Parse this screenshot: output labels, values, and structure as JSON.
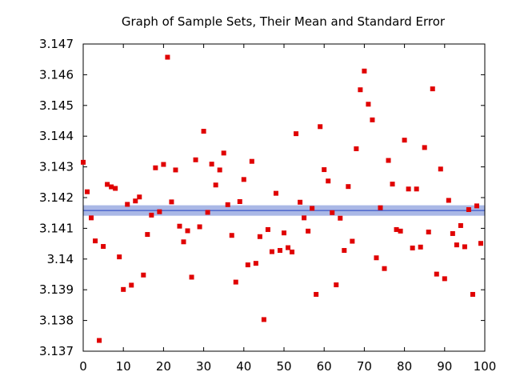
{
  "chart_data": {
    "type": "scatter",
    "title": "Graph of Sample Sets, Their Mean and Standard Error",
    "xlabel": "",
    "ylabel": "",
    "xlim": [
      0,
      100
    ],
    "ylim": [
      3.137,
      3.147
    ],
    "x_ticks": [
      "0",
      "10",
      "20",
      "30",
      "40",
      "50",
      "60",
      "70",
      "80",
      "90",
      "100"
    ],
    "y_ticks": [
      "3.137",
      "3.138",
      "3.139",
      "3.14",
      "3.141",
      "3.142",
      "3.143",
      "3.144",
      "3.145",
      "3.146",
      "3.147"
    ],
    "grid": false,
    "legend": "none",
    "marker_color": "#e00000",
    "mean_line_color": "#2040c0",
    "error_band_color": "#aab8e6",
    "mean": 3.14158,
    "standard_error": 0.00017,
    "series": [
      {
        "x": [
          0,
          1,
          2,
          3,
          4,
          5,
          6,
          7,
          8,
          9,
          10,
          11,
          12,
          13,
          14,
          15,
          16,
          17,
          18,
          19,
          20,
          21,
          22,
          23,
          24,
          25,
          26,
          27,
          28,
          29,
          30,
          31,
          32,
          33,
          34,
          35,
          36,
          37,
          38,
          39,
          40,
          41,
          42,
          43,
          44,
          45,
          46,
          47,
          48,
          49,
          50,
          51,
          52,
          53,
          54,
          55,
          56,
          57,
          58,
          59,
          60,
          61,
          62,
          63,
          64,
          65,
          66,
          67,
          68,
          69,
          70,
          71,
          72,
          73,
          74,
          75,
          76,
          77,
          78,
          79,
          80,
          81,
          82,
          83,
          84,
          85,
          86,
          87,
          88,
          89,
          90,
          91,
          92,
          93,
          94,
          95,
          96,
          97,
          98,
          99
        ],
        "y": [
          3.14315,
          3.14219,
          3.14134,
          3.14059,
          3.13735,
          3.14041,
          3.14243,
          3.14235,
          3.1423,
          3.14007,
          3.13901,
          3.14178,
          3.13915,
          3.14189,
          3.14202,
          3.13948,
          3.1408,
          3.14143,
          3.14297,
          3.14154,
          3.14308,
          3.14657,
          3.14186,
          3.1429,
          3.14107,
          3.14056,
          3.14092,
          3.13941,
          3.14323,
          3.14105,
          3.14416,
          3.14152,
          3.14309,
          3.14241,
          3.1429,
          3.14345,
          3.14177,
          3.14077,
          3.13925,
          3.14187,
          3.14259,
          3.13981,
          3.14318,
          3.13986,
          3.14073,
          3.13803,
          3.14096,
          3.14024,
          3.14214,
          3.14028,
          3.14085,
          3.14037,
          3.14023,
          3.14408,
          3.14185,
          3.14134,
          3.14091,
          3.14165,
          3.13885,
          3.14431,
          3.14291,
          3.14254,
          3.14151,
          3.13916,
          3.14133,
          3.14028,
          3.14236,
          3.14058,
          3.14359,
          3.14551,
          3.14612,
          3.14504,
          3.14453,
          3.14004,
          3.14167,
          3.13969,
          3.14321,
          3.14244,
          3.14096,
          3.14091,
          3.14387,
          3.14228,
          3.14036,
          3.14228,
          3.14039,
          3.14363,
          3.14088,
          3.14554,
          3.13951,
          3.14293,
          3.13936,
          3.14191,
          3.14083,
          3.14046,
          3.14109,
          3.1404,
          3.14161,
          3.13885,
          3.14173,
          3.14051
        ]
      }
    ]
  }
}
